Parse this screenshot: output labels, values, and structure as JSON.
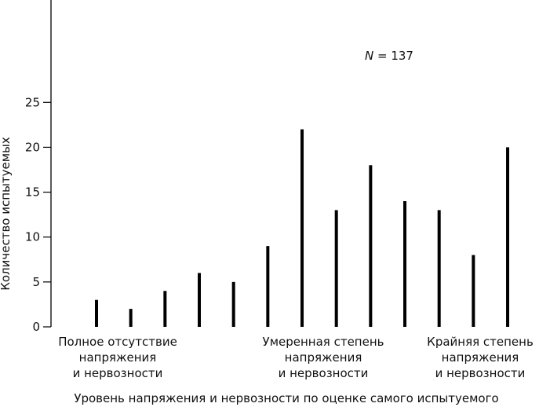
{
  "chart_data": {
    "type": "bar",
    "annotation": "N = 137",
    "x_label": "Уровень напряжения и нервозности по оценке самого испытуемого",
    "y_label": "Количество испытуемых",
    "categories": [
      "Полное отсутствие\nнапряжения\nи нервозности",
      null,
      null,
      null,
      null,
      null,
      "Умеренная степень\nнапряжения\nи нервозности",
      null,
      null,
      null,
      null,
      null,
      "Крайняя степень\nнапряжения\nи нервозности"
    ],
    "values": [
      3,
      2,
      4,
      6,
      5,
      9,
      22,
      13,
      18,
      14,
      13,
      8,
      20
    ],
    "color": "#000000",
    "ylim": [
      0,
      36.4
    ],
    "yticks": [
      0,
      5,
      10,
      15,
      20,
      25
    ]
  }
}
